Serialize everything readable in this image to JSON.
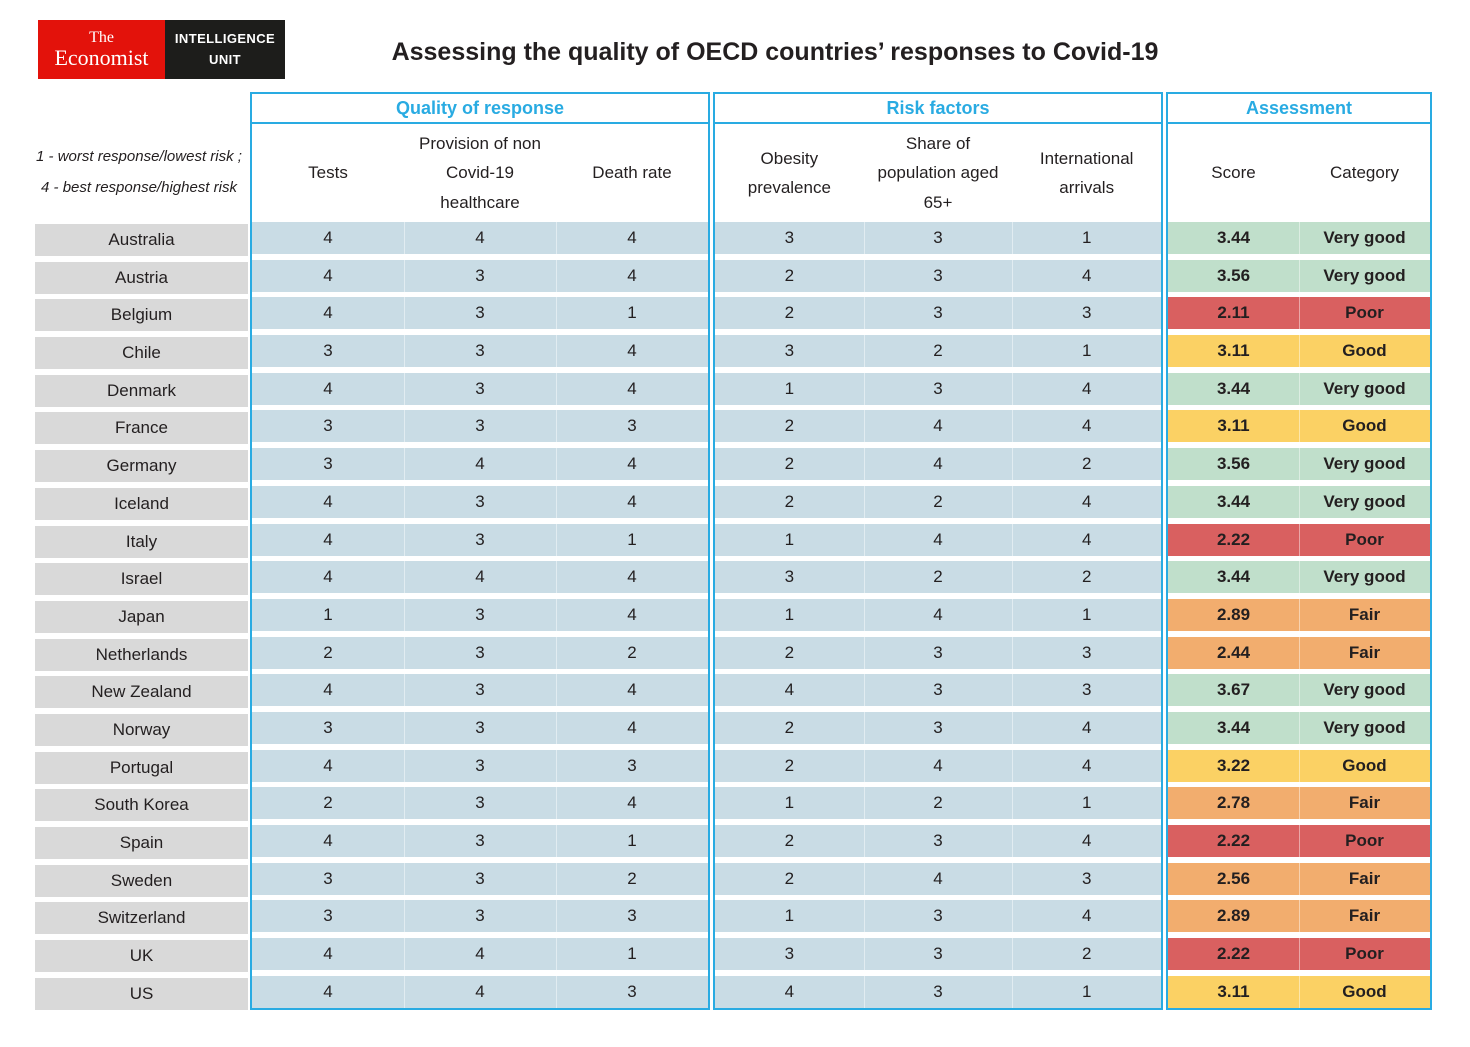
{
  "logo": {
    "brand_line1": "The",
    "brand_line2": "Economist",
    "unit_line1": "INTELLIGENCE",
    "unit_line2": "UNIT"
  },
  "title": "Assessing the quality of OECD countries’ responses to Covid-19",
  "legend_note": {
    "line1": "1 - worst response/lowest risk ;",
    "line2": "4 - best response/highest risk"
  },
  "colors": {
    "accent_cyan": "#29abe2",
    "cell_blue": "#c9dce5",
    "cell_gray": "#d9d9d9",
    "logo_red": "#e3120b",
    "logo_black": "#1d1d1b"
  },
  "chart_data": {
    "type": "table",
    "title": "Assessing the quality of OECD countries’ responses to Covid-19",
    "legend": "1 - worst response/lowest risk ; 4 - best response/highest risk",
    "column_groups": [
      {
        "label": "Quality of response",
        "columns": [
          "Tests",
          "Provision of non Covid-19 healthcare",
          "Death rate"
        ]
      },
      {
        "label": "Risk factors",
        "columns": [
          "Obesity prevalence",
          "Share of population aged 65+",
          "International arrivals"
        ]
      },
      {
        "label": "Assessment",
        "columns": [
          "Score",
          "Category"
        ]
      }
    ],
    "category_colors": {
      "Very good": "#c0dfcb",
      "Good": "#fbd164",
      "Fair": "#f2ad6e",
      "Poor": "#d96060"
    },
    "rows": [
      {
        "country": "Australia",
        "quality": [
          4,
          4,
          4
        ],
        "risk": [
          3,
          3,
          1
        ],
        "score": "3.44",
        "category": "Very good"
      },
      {
        "country": "Austria",
        "quality": [
          4,
          3,
          4
        ],
        "risk": [
          2,
          3,
          4
        ],
        "score": "3.56",
        "category": "Very good"
      },
      {
        "country": "Belgium",
        "quality": [
          4,
          3,
          1
        ],
        "risk": [
          2,
          3,
          3
        ],
        "score": "2.11",
        "category": "Poor"
      },
      {
        "country": "Chile",
        "quality": [
          3,
          3,
          4
        ],
        "risk": [
          3,
          2,
          1
        ],
        "score": "3.11",
        "category": "Good"
      },
      {
        "country": "Denmark",
        "quality": [
          4,
          3,
          4
        ],
        "risk": [
          1,
          3,
          4
        ],
        "score": "3.44",
        "category": "Very good"
      },
      {
        "country": "France",
        "quality": [
          3,
          3,
          3
        ],
        "risk": [
          2,
          4,
          4
        ],
        "score": "3.11",
        "category": "Good"
      },
      {
        "country": "Germany",
        "quality": [
          3,
          4,
          4
        ],
        "risk": [
          2,
          4,
          2
        ],
        "score": "3.56",
        "category": "Very good"
      },
      {
        "country": "Iceland",
        "quality": [
          4,
          3,
          4
        ],
        "risk": [
          2,
          2,
          4
        ],
        "score": "3.44",
        "category": "Very good"
      },
      {
        "country": "Italy",
        "quality": [
          4,
          3,
          1
        ],
        "risk": [
          1,
          4,
          4
        ],
        "score": "2.22",
        "category": "Poor"
      },
      {
        "country": "Israel",
        "quality": [
          4,
          4,
          4
        ],
        "risk": [
          3,
          2,
          2
        ],
        "score": "3.44",
        "category": "Very good"
      },
      {
        "country": "Japan",
        "quality": [
          1,
          3,
          4
        ],
        "risk": [
          1,
          4,
          1
        ],
        "score": "2.89",
        "category": "Fair"
      },
      {
        "country": "Netherlands",
        "quality": [
          2,
          3,
          2
        ],
        "risk": [
          2,
          3,
          3
        ],
        "score": "2.44",
        "category": "Fair"
      },
      {
        "country": "New Zealand",
        "quality": [
          4,
          3,
          4
        ],
        "risk": [
          4,
          3,
          3
        ],
        "score": "3.67",
        "category": "Very good"
      },
      {
        "country": "Norway",
        "quality": [
          3,
          3,
          4
        ],
        "risk": [
          2,
          3,
          4
        ],
        "score": "3.44",
        "category": "Very good"
      },
      {
        "country": "Portugal",
        "quality": [
          4,
          3,
          3
        ],
        "risk": [
          2,
          4,
          4
        ],
        "score": "3.22",
        "category": "Good"
      },
      {
        "country": "South Korea",
        "quality": [
          2,
          3,
          4
        ],
        "risk": [
          1,
          2,
          1
        ],
        "score": "2.78",
        "category": "Fair"
      },
      {
        "country": "Spain",
        "quality": [
          4,
          3,
          1
        ],
        "risk": [
          2,
          3,
          4
        ],
        "score": "2.22",
        "category": "Poor"
      },
      {
        "country": "Sweden",
        "quality": [
          3,
          3,
          2
        ],
        "risk": [
          2,
          4,
          3
        ],
        "score": "2.56",
        "category": "Fair"
      },
      {
        "country": "Switzerland",
        "quality": [
          3,
          3,
          3
        ],
        "risk": [
          1,
          3,
          4
        ],
        "score": "2.89",
        "category": "Fair"
      },
      {
        "country": "UK",
        "quality": [
          4,
          4,
          1
        ],
        "risk": [
          3,
          3,
          2
        ],
        "score": "2.22",
        "category": "Poor"
      },
      {
        "country": "US",
        "quality": [
          4,
          4,
          3
        ],
        "risk": [
          4,
          3,
          1
        ],
        "score": "3.11",
        "category": "Good"
      }
    ]
  }
}
